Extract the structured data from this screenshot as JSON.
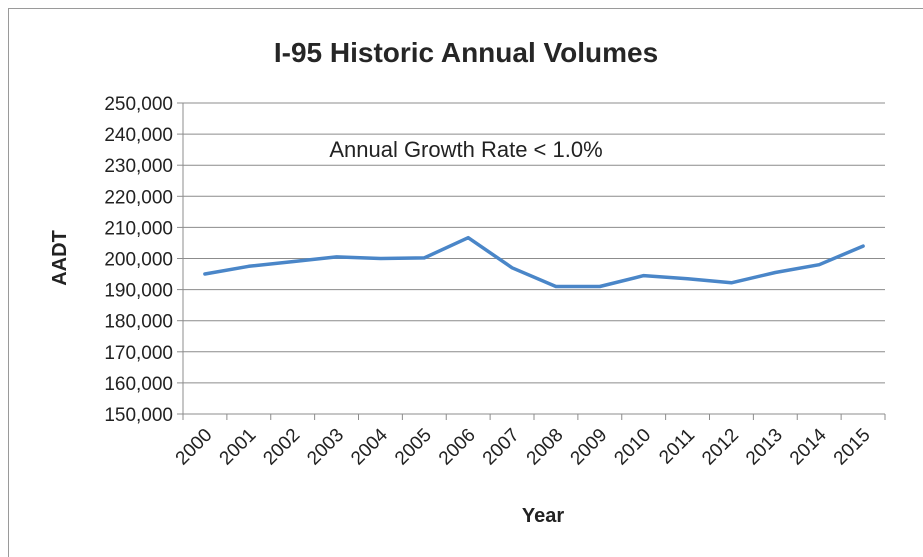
{
  "chart_data": {
    "type": "line",
    "title": "I-95 Historic Annual Volumes",
    "xlabel": "Year",
    "ylabel": "AADT",
    "annotation": "Annual Growth Rate < 1.0%",
    "ylim": [
      150000,
      250000
    ],
    "y_ticks": [
      250000,
      240000,
      230000,
      220000,
      210000,
      200000,
      190000,
      180000,
      170000,
      160000,
      150000
    ],
    "y_tick_labels": [
      "250,000",
      "240,000",
      "230,000",
      "220,000",
      "210,000",
      "200,000",
      "190,000",
      "180,000",
      "170,000",
      "160,000",
      "150,000"
    ],
    "categories": [
      "2000",
      "2001",
      "2002",
      "2003",
      "2004",
      "2005",
      "2006",
      "2007",
      "2008",
      "2009",
      "2010",
      "2011",
      "2012",
      "2013",
      "2014",
      "2015"
    ],
    "series": [
      {
        "values": [
          195000,
          197500,
          199000,
          200500,
          200000,
          200200,
          206700,
          197000,
          191000,
          191000,
          194500,
          193500,
          192200,
          195500,
          198000,
          204000
        ],
        "color": "#4a86c8"
      }
    ],
    "grid": true,
    "legend": "none"
  }
}
